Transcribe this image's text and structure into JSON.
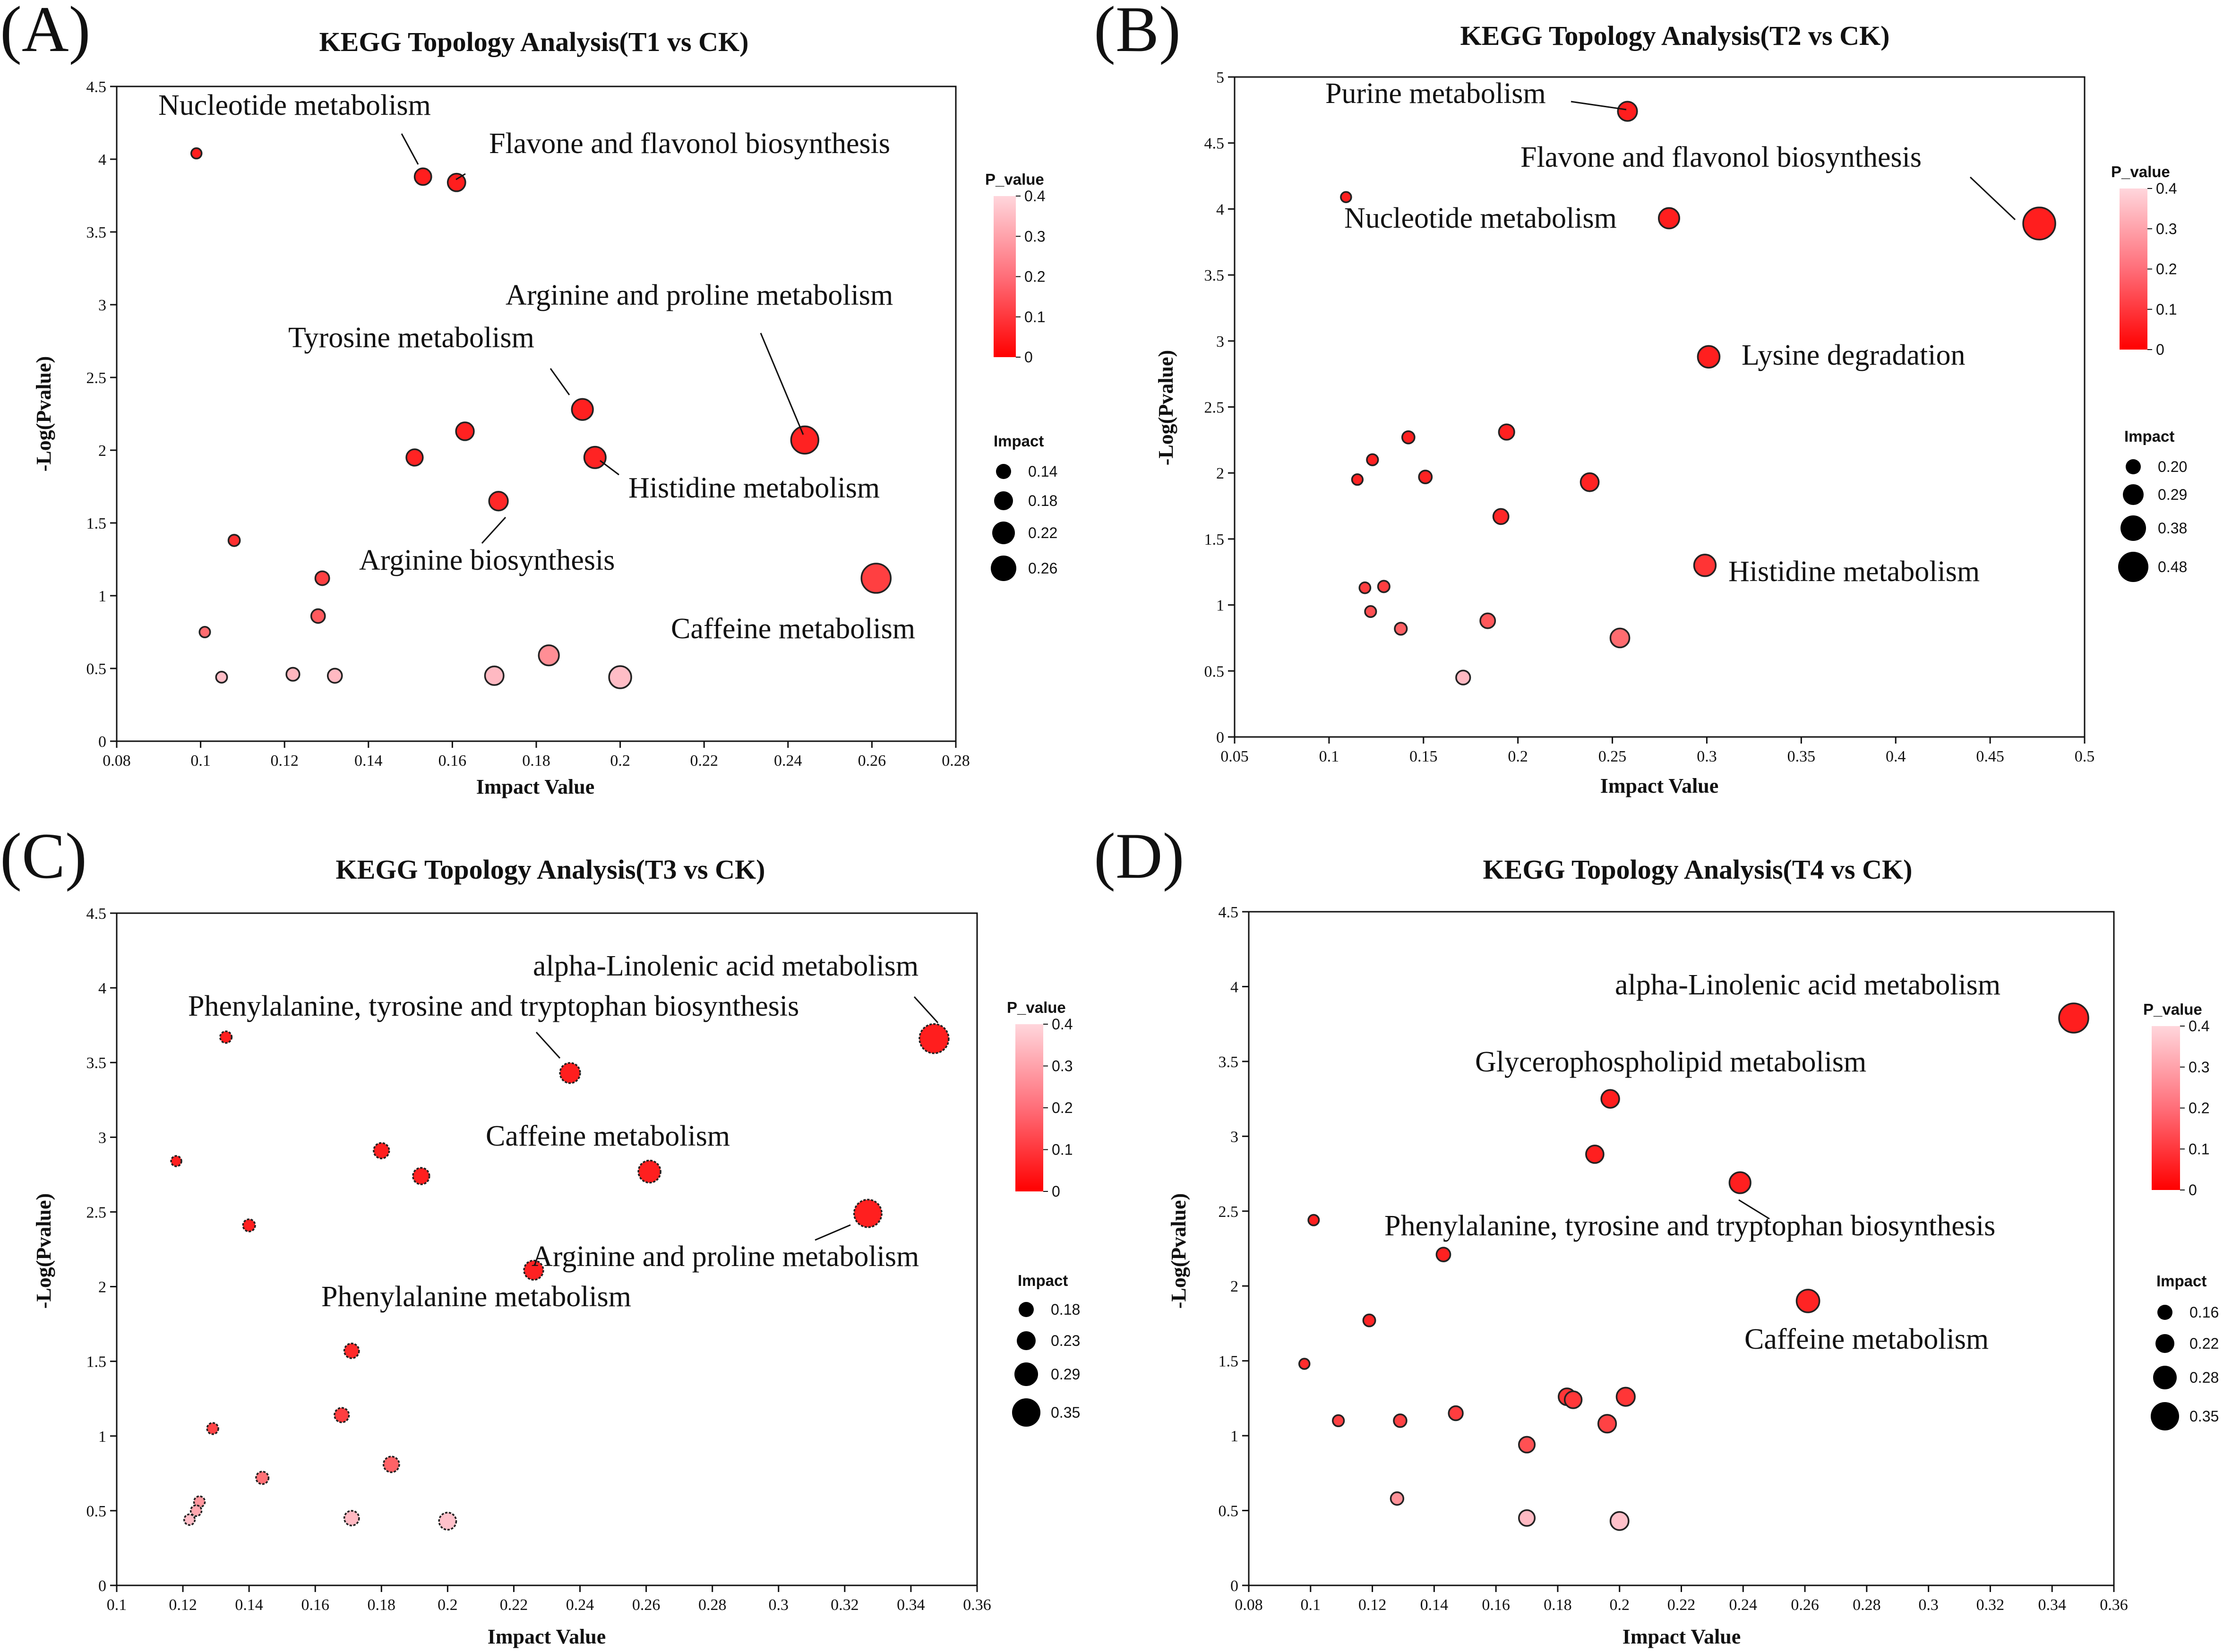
{
  "chart_data": [
    {
      "panel": "(A)",
      "type": "scatter",
      "title": "KEGG Topology Analysis(T1 vs CK)",
      "xlabel": "Impact Value",
      "ylabel": "-Log(Pvalue)",
      "xlim": [
        0.08,
        0.28
      ],
      "ylim": [
        0,
        4.5
      ],
      "xticks": [
        "0.08",
        "0.1",
        "0.12",
        "0.14",
        "0.16",
        "0.18",
        "0.2",
        "0.22",
        "0.24",
        "0.26",
        "0.28"
      ],
      "yticks": [
        "0",
        "0.5",
        "1",
        "1.5",
        "2",
        "2.5",
        "3",
        "3.5",
        "4",
        "4.5"
      ],
      "color_legend": {
        "title": "P_value",
        "ticks": [
          "0",
          "0.1",
          "0.2",
          "0.3",
          "0.4"
        ]
      },
      "size_legend": {
        "title": "Impact",
        "items": [
          "0.14",
          "0.18",
          "0.22",
          "0.26"
        ]
      },
      "points": [
        {
          "x": 0.099,
          "y": 4.04
        },
        {
          "x": 0.153,
          "y": 3.88
        },
        {
          "x": 0.161,
          "y": 3.84
        },
        {
          "x": 0.191,
          "y": 2.28
        },
        {
          "x": 0.163,
          "y": 2.13
        },
        {
          "x": 0.244,
          "y": 2.07
        },
        {
          "x": 0.151,
          "y": 1.95
        },
        {
          "x": 0.194,
          "y": 1.95
        },
        {
          "x": 0.171,
          "y": 1.65
        },
        {
          "x": 0.108,
          "y": 1.38
        },
        {
          "x": 0.129,
          "y": 1.12
        },
        {
          "x": 0.261,
          "y": 1.12
        },
        {
          "x": 0.128,
          "y": 0.86
        },
        {
          "x": 0.101,
          "y": 0.75
        },
        {
          "x": 0.183,
          "y": 0.59
        },
        {
          "x": 0.122,
          "y": 0.46
        },
        {
          "x": 0.132,
          "y": 0.45
        },
        {
          "x": 0.17,
          "y": 0.45
        },
        {
          "x": 0.105,
          "y": 0.44
        },
        {
          "x": 0.2,
          "y": 0.44
        }
      ],
      "annotations": [
        "Nucleotide metabolism",
        "Flavone and flavonol biosynthesis",
        "Arginine and proline metabolism",
        "Tyrosine metabolism",
        "Histidine metabolism",
        "Arginine biosynthesis",
        "Caffeine metabolism"
      ]
    },
    {
      "panel": "(B)",
      "type": "scatter",
      "title": "KEGG Topology Analysis(T2 vs CK)",
      "xlabel": "Impact Value",
      "ylabel": "-Log(Pvalue)",
      "xlim": [
        0.05,
        0.5
      ],
      "ylim": [
        0,
        5
      ],
      "xticks": [
        "0.05",
        "0.1",
        "0.15",
        "0.2",
        "0.25",
        "0.3",
        "0.35",
        "0.4",
        "0.45",
        "0.5"
      ],
      "yticks": [
        "0",
        "0.5",
        "1",
        "1.5",
        "2",
        "2.5",
        "3",
        "3.5",
        "4",
        "4.5",
        "5"
      ],
      "color_legend": {
        "title": "P_value",
        "ticks": [
          "0",
          "0.1",
          "0.2",
          "0.3",
          "0.4"
        ]
      },
      "size_legend": {
        "title": "Impact",
        "items": [
          "0.20",
          "0.29",
          "0.38",
          "0.48"
        ]
      },
      "points": [
        {
          "x": 0.258,
          "y": 4.74
        },
        {
          "x": 0.109,
          "y": 4.09
        },
        {
          "x": 0.28,
          "y": 3.93
        },
        {
          "x": 0.476,
          "y": 3.89
        },
        {
          "x": 0.301,
          "y": 2.88
        },
        {
          "x": 0.194,
          "y": 2.31
        },
        {
          "x": 0.142,
          "y": 2.27
        },
        {
          "x": 0.123,
          "y": 2.1
        },
        {
          "x": 0.151,
          "y": 1.97
        },
        {
          "x": 0.115,
          "y": 1.95
        },
        {
          "x": 0.238,
          "y": 1.93
        },
        {
          "x": 0.191,
          "y": 1.67
        },
        {
          "x": 0.299,
          "y": 1.3
        },
        {
          "x": 0.129,
          "y": 1.14
        },
        {
          "x": 0.119,
          "y": 1.13
        },
        {
          "x": 0.122,
          "y": 0.95
        },
        {
          "x": 0.184,
          "y": 0.88
        },
        {
          "x": 0.138,
          "y": 0.82
        },
        {
          "x": 0.254,
          "y": 0.75
        },
        {
          "x": 0.171,
          "y": 0.45
        }
      ],
      "annotations": [
        "Purine metabolism",
        "Flavone and flavonol biosynthesis",
        "Nucleotide metabolism",
        "Lysine degradation",
        "Histidine metabolism"
      ]
    },
    {
      "panel": "(C)",
      "type": "scatter",
      "title": "KEGG Topology Analysis(T3 vs CK)",
      "xlabel": "Impact Value",
      "ylabel": "-Log(Pvalue)",
      "xlim": [
        0.1,
        0.36
      ],
      "ylim": [
        0,
        4.5
      ],
      "xticks": [
        "0.1",
        "0.12",
        "0.14",
        "0.16",
        "0.18",
        "0.2",
        "0.22",
        "0.24",
        "0.26",
        "0.28",
        "0.3",
        "0.32",
        "0.34",
        "0.36"
      ],
      "yticks": [
        "0",
        "0.5",
        "1",
        "1.5",
        "2",
        "2.5",
        "3",
        "3.5",
        "4",
        "4.5"
      ],
      "color_legend": {
        "title": "P_value",
        "ticks": [
          "0",
          "0.1",
          "0.2",
          "0.3",
          "0.4"
        ]
      },
      "size_legend": {
        "title": "Impact",
        "items": [
          "0.18",
          "0.23",
          "0.29",
          "0.35"
        ]
      },
      "points": [
        {
          "x": 0.133,
          "y": 3.67
        },
        {
          "x": 0.347,
          "y": 3.66
        },
        {
          "x": 0.237,
          "y": 3.43
        },
        {
          "x": 0.18,
          "y": 2.91
        },
        {
          "x": 0.118,
          "y": 2.84
        },
        {
          "x": 0.261,
          "y": 2.77
        },
        {
          "x": 0.192,
          "y": 2.74
        },
        {
          "x": 0.327,
          "y": 2.49
        },
        {
          "x": 0.14,
          "y": 2.41
        },
        {
          "x": 0.226,
          "y": 2.11
        },
        {
          "x": 0.171,
          "y": 1.57
        },
        {
          "x": 0.168,
          "y": 1.14
        },
        {
          "x": 0.129,
          "y": 1.05
        },
        {
          "x": 0.183,
          "y": 0.81
        },
        {
          "x": 0.144,
          "y": 0.72
        },
        {
          "x": 0.125,
          "y": 0.56
        },
        {
          "x": 0.124,
          "y": 0.5
        },
        {
          "x": 0.171,
          "y": 0.45
        },
        {
          "x": 0.122,
          "y": 0.44
        },
        {
          "x": 0.2,
          "y": 0.43
        }
      ],
      "annotations": [
        "alpha-Linolenic acid metabolism",
        "Phenylalanine, tyrosine and tryptophan biosynthesis",
        "Caffeine metabolism",
        "Arginine and proline metabolism",
        "Phenylalanine metabolism"
      ]
    },
    {
      "panel": "(D)",
      "type": "scatter",
      "title": "KEGG Topology Analysis(T4 vs CK)",
      "xlabel": "Impact Value",
      "ylabel": "-Log(Pvalue)",
      "xlim": [
        0.08,
        0.36
      ],
      "ylim": [
        0,
        4.5
      ],
      "xticks": [
        "0.08",
        "0.1",
        "0.12",
        "0.14",
        "0.16",
        "0.18",
        "0.2",
        "0.22",
        "0.24",
        "0.26",
        "0.28",
        "0.3",
        "0.32",
        "0.34",
        "0.36"
      ],
      "yticks": [
        "0",
        "0.5",
        "1",
        "1.5",
        "2",
        "2.5",
        "3",
        "3.5",
        "4",
        "4.5"
      ],
      "color_legend": {
        "title": "P_value",
        "ticks": [
          "0",
          "0.1",
          "0.2",
          "0.3",
          "0.4"
        ]
      },
      "size_legend": {
        "title": "Impact",
        "items": [
          "0.16",
          "0.22",
          "0.28",
          "0.35"
        ]
      },
      "points": [
        {
          "x": 0.347,
          "y": 3.79
        },
        {
          "x": 0.197,
          "y": 3.25
        },
        {
          "x": 0.192,
          "y": 2.88
        },
        {
          "x": 0.239,
          "y": 2.69
        },
        {
          "x": 0.101,
          "y": 2.44
        },
        {
          "x": 0.143,
          "y": 2.21
        },
        {
          "x": 0.261,
          "y": 1.9
        },
        {
          "x": 0.119,
          "y": 1.77
        },
        {
          "x": 0.098,
          "y": 1.48
        },
        {
          "x": 0.202,
          "y": 1.26
        },
        {
          "x": 0.183,
          "y": 1.26
        },
        {
          "x": 0.185,
          "y": 1.24
        },
        {
          "x": 0.147,
          "y": 1.15
        },
        {
          "x": 0.109,
          "y": 1.1
        },
        {
          "x": 0.129,
          "y": 1.1
        },
        {
          "x": 0.196,
          "y": 1.08
        },
        {
          "x": 0.17,
          "y": 0.94
        },
        {
          "x": 0.128,
          "y": 0.58
        },
        {
          "x": 0.17,
          "y": 0.45
        },
        {
          "x": 0.2,
          "y": 0.43
        }
      ],
      "annotations": [
        "alpha-Linolenic acid metabolism",
        "Glycerophospholipid metabolism",
        "Phenylalanine, tyrosine and tryptophan biosynthesis",
        "Caffeine metabolism"
      ]
    }
  ]
}
